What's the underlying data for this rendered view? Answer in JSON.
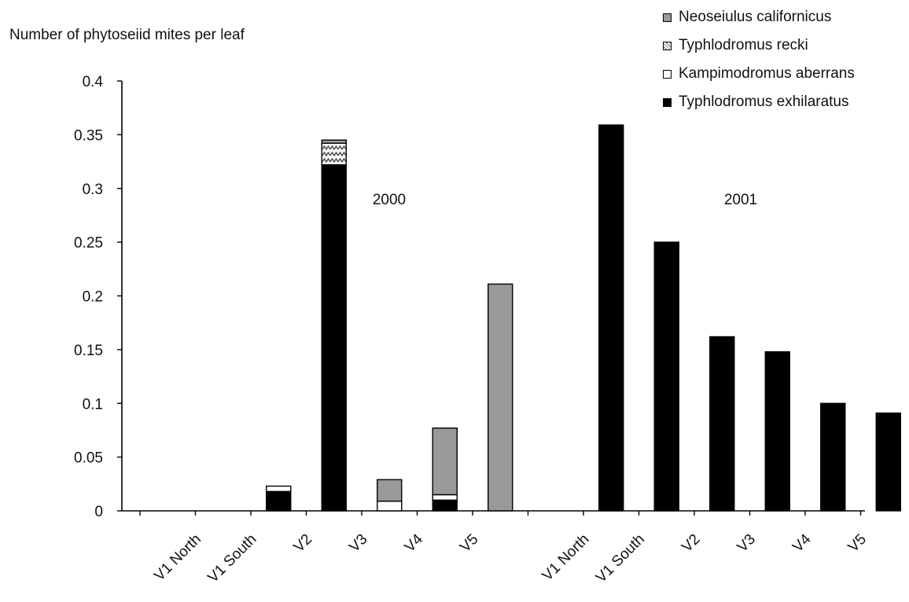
{
  "chart_data": {
    "type": "bar",
    "stacked": true,
    "ylabel": "Number of phytoseiid mites per leaf",
    "ylim": [
      0,
      0.4
    ],
    "yticks": [
      "0",
      "0.05",
      "0.1",
      "0.15",
      "0.2",
      "0.25",
      "0.3",
      "0.35",
      "0.4"
    ],
    "legend_placement": "top-right",
    "colors": {
      "Neoseiulus californicus": "#999999",
      "Typhlodromus recki": "#c8c8c8",
      "Kampimodromus aberrans": "#ffffff",
      "Typhlodromus exhilaratus": "#000000"
    },
    "series_names": [
      "Neoseiulus californicus",
      "Typhlodromus recki",
      "Kampimodromus aberrans",
      "Typhlodromus exhilaratus"
    ],
    "groups": [
      {
        "label": "2000",
        "categories": [
          "V1 North",
          "V1 South",
          "V2",
          "V3",
          "V4",
          "V5"
        ],
        "series": [
          {
            "name": "Typhlodromus exhilaratus",
            "values": [
              0,
              0.018,
              0.322,
              0,
              0.01,
              0
            ]
          },
          {
            "name": "Kampimodromus aberrans",
            "values": [
              0,
              0.005,
              0,
              0.009,
              0.005,
              0
            ]
          },
          {
            "name": "Typhlodromus recki",
            "values": [
              0,
              0,
              0.02,
              0,
              0,
              0
            ]
          },
          {
            "name": "Neoseiulus californicus",
            "values": [
              0,
              0,
              0.003,
              0.02,
              0.062,
              0.211
            ]
          }
        ]
      },
      {
        "label": "2001",
        "categories": [
          "V1 North",
          "V1 South",
          "V2",
          "V3",
          "V4",
          "V5"
        ],
        "series": [
          {
            "name": "Typhlodromus exhilaratus",
            "values": [
              0.359,
              0.25,
              0.162,
              0.148,
              0.1,
              0.091
            ]
          },
          {
            "name": "Kampimodromus aberrans",
            "values": [
              0,
              0,
              0,
              0,
              0,
              0
            ]
          },
          {
            "name": "Typhlodromus recki",
            "values": [
              0,
              0,
              0,
              0,
              0,
              0
            ]
          },
          {
            "name": "Neoseiulus californicus",
            "values": [
              0,
              0,
              0,
              0,
              0,
              0
            ]
          }
        ]
      }
    ]
  }
}
